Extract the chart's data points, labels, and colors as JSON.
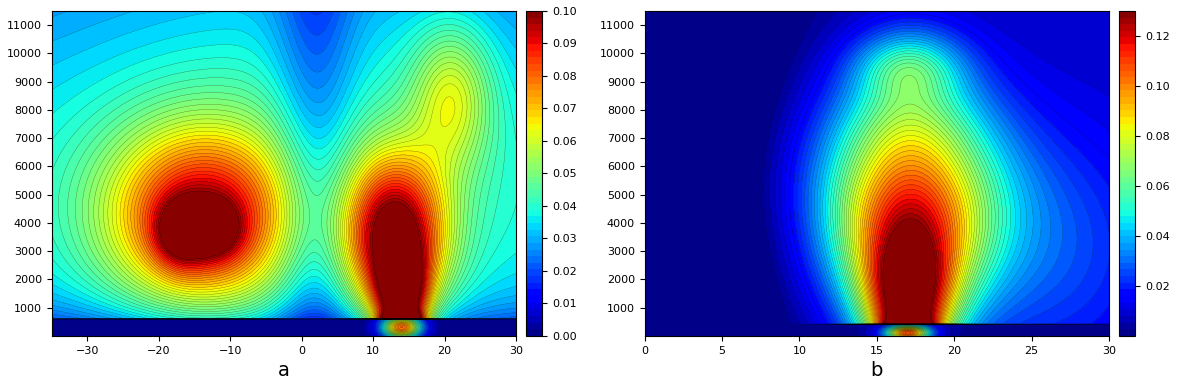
{
  "panel_a": {
    "xlim": [
      -35,
      30
    ],
    "ylim": [
      0,
      11500
    ],
    "xlabel_ticks": [
      -30,
      -20,
      -10,
      0,
      10,
      20,
      30
    ],
    "ylabel_ticks": [
      1000,
      2000,
      3000,
      4000,
      5000,
      6000,
      7000,
      8000,
      9000,
      10000,
      11000
    ],
    "label": "a",
    "cmap": "jet",
    "vmin": 0,
    "vmax": 0.1,
    "colorbar_ticks": [
      0,
      0.01,
      0.02,
      0.03,
      0.04,
      0.05,
      0.06,
      0.07,
      0.08,
      0.09,
      0.1
    ]
  },
  "panel_b": {
    "xlim": [
      0,
      30
    ],
    "ylim": [
      0,
      11500
    ],
    "xlabel_ticks": [
      0,
      5,
      10,
      15,
      20,
      25,
      30
    ],
    "ylabel_ticks": [
      1000,
      2000,
      3000,
      4000,
      5000,
      6000,
      7000,
      8000,
      9000,
      10000,
      11000
    ],
    "label": "b",
    "cmap": "jet",
    "vmin": 0,
    "vmax": 0.13,
    "colorbar_ticks": [
      0.02,
      0.04,
      0.06,
      0.08,
      0.1,
      0.12
    ]
  },
  "fig_bgcolor": "#ffffff",
  "label_fontsize": 14,
  "tick_fontsize": 8
}
